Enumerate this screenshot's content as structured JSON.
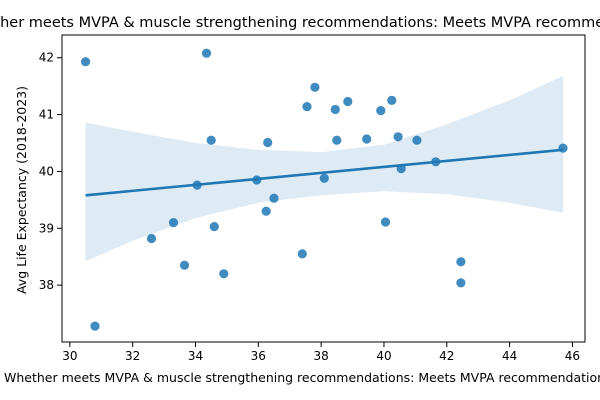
{
  "chart_data": {
    "type": "scatter",
    "title": "Whether meets MVPA & muscle strengthening recommendations: Meets MVPA recommendations only",
    "xlabel": "Whether meets MVPA & muscle strengthening recommendations: Meets MVPA recommendations only",
    "ylabel": "Avg Life Expectancy (2018-2023)",
    "xlim": [
      29.75,
      46.4
    ],
    "ylim": [
      37.0,
      42.4
    ],
    "xticks": [
      30,
      32,
      34,
      36,
      38,
      40,
      42,
      44,
      46
    ],
    "yticks": [
      38,
      39,
      40,
      41,
      42
    ],
    "grid": false,
    "colors": {
      "points": "#1f77b4",
      "line": "#1f77b4",
      "band": "#1f77b4"
    },
    "points": [
      {
        "x": 30.5,
        "y": 41.93
      },
      {
        "x": 30.8,
        "y": 37.28
      },
      {
        "x": 32.6,
        "y": 38.82
      },
      {
        "x": 33.3,
        "y": 39.1
      },
      {
        "x": 33.65,
        "y": 38.35
      },
      {
        "x": 34.05,
        "y": 39.76
      },
      {
        "x": 34.35,
        "y": 42.08
      },
      {
        "x": 34.5,
        "y": 40.55
      },
      {
        "x": 34.6,
        "y": 39.03
      },
      {
        "x": 34.9,
        "y": 38.2
      },
      {
        "x": 35.95,
        "y": 39.85
      },
      {
        "x": 36.25,
        "y": 39.3
      },
      {
        "x": 36.3,
        "y": 40.51
      },
      {
        "x": 36.5,
        "y": 39.53
      },
      {
        "x": 37.4,
        "y": 38.55
      },
      {
        "x": 37.55,
        "y": 41.14
      },
      {
        "x": 37.8,
        "y": 41.48
      },
      {
        "x": 38.1,
        "y": 39.88
      },
      {
        "x": 38.45,
        "y": 41.09
      },
      {
        "x": 38.5,
        "y": 40.55
      },
      {
        "x": 38.85,
        "y": 41.23
      },
      {
        "x": 39.45,
        "y": 40.57
      },
      {
        "x": 39.9,
        "y": 41.07
      },
      {
        "x": 40.05,
        "y": 39.11
      },
      {
        "x": 40.25,
        "y": 41.25
      },
      {
        "x": 40.45,
        "y": 40.61
      },
      {
        "x": 40.55,
        "y": 40.05
      },
      {
        "x": 41.05,
        "y": 40.55
      },
      {
        "x": 41.65,
        "y": 40.17
      },
      {
        "x": 42.45,
        "y": 38.41
      },
      {
        "x": 42.45,
        "y": 38.04
      },
      {
        "x": 45.7,
        "y": 40.41
      }
    ],
    "regression": {
      "x": [
        30.5,
        45.7
      ],
      "y": [
        39.58,
        40.38
      ]
    },
    "confidence_band": [
      {
        "x": 30.5,
        "lo": 38.42,
        "hi": 40.86
      },
      {
        "x": 32.0,
        "lo": 38.78,
        "hi": 40.7
      },
      {
        "x": 34.0,
        "lo": 39.18,
        "hi": 40.5
      },
      {
        "x": 36.0,
        "lo": 39.45,
        "hi": 40.38
      },
      {
        "x": 38.0,
        "lo": 39.58,
        "hi": 40.34
      },
      {
        "x": 40.0,
        "lo": 39.65,
        "hi": 40.47
      },
      {
        "x": 42.0,
        "lo": 39.6,
        "hi": 40.83
      },
      {
        "x": 44.0,
        "lo": 39.45,
        "hi": 41.25
      },
      {
        "x": 45.7,
        "lo": 39.27,
        "hi": 41.68
      }
    ]
  }
}
